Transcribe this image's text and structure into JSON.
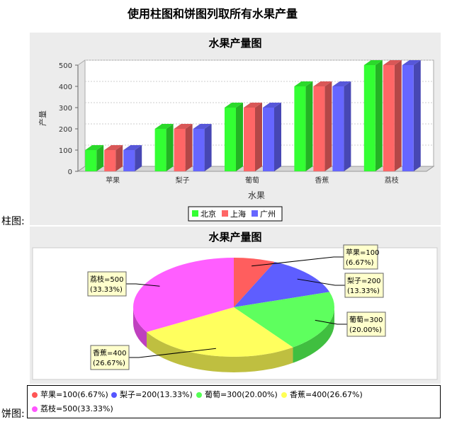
{
  "page": {
    "title": "使用柱图和饼图列取所有水果产量",
    "bar_label": "柱图:",
    "pie_label": "饼图:"
  },
  "chart_data": [
    {
      "type": "bar",
      "title": "水果产量图",
      "xlabel": "水果",
      "ylabel": "产量",
      "categories": [
        "苹果",
        "梨子",
        "葡萄",
        "香蕉",
        "荔枝"
      ],
      "series": [
        {
          "name": "北京",
          "color": "#33ff33",
          "values": [
            100,
            200,
            300,
            400,
            500
          ]
        },
        {
          "name": "上海",
          "color": "#ff6666",
          "values": [
            100,
            200,
            300,
            400,
            500
          ]
        },
        {
          "name": "广州",
          "color": "#6666ff",
          "values": [
            100,
            200,
            300,
            400,
            500
          ]
        }
      ],
      "ylim": [
        0,
        500
      ],
      "yticks": [
        "0",
        "100",
        "200",
        "300",
        "400",
        "500"
      ],
      "grid": true,
      "legend": "bottom"
    },
    {
      "type": "pie",
      "title": "水果产量图",
      "slices": [
        {
          "name": "苹果",
          "value": 100,
          "percent": "6.67%",
          "color": "#ff5555",
          "label": "苹果=100",
          "pct_label": "(6.67%)",
          "legend": "苹果=100(6.67%)"
        },
        {
          "name": "梨子",
          "value": 200,
          "percent": "13.33%",
          "color": "#5555ff",
          "label": "梨子=200",
          "pct_label": "(13.33%)",
          "legend": "梨子=200(13.33%)"
        },
        {
          "name": "葡萄",
          "value": 300,
          "percent": "20.00%",
          "color": "#55ff55",
          "label": "葡萄=300",
          "pct_label": "(20.00%)",
          "legend": "葡萄=300(20.00%)"
        },
        {
          "name": "香蕉",
          "value": 400,
          "percent": "26.67%",
          "color": "#ffff55",
          "label": "香蕉=400",
          "pct_label": "(26.67%)",
          "legend": "香蕉=400(26.67%)"
        },
        {
          "name": "荔枝",
          "value": 500,
          "percent": "33.33%",
          "color": "#ff55ff",
          "label": "荔枝=500",
          "pct_label": "(33.33%)",
          "legend": "荔枝=500(33.33%)"
        }
      ],
      "legend": "bottom"
    }
  ]
}
